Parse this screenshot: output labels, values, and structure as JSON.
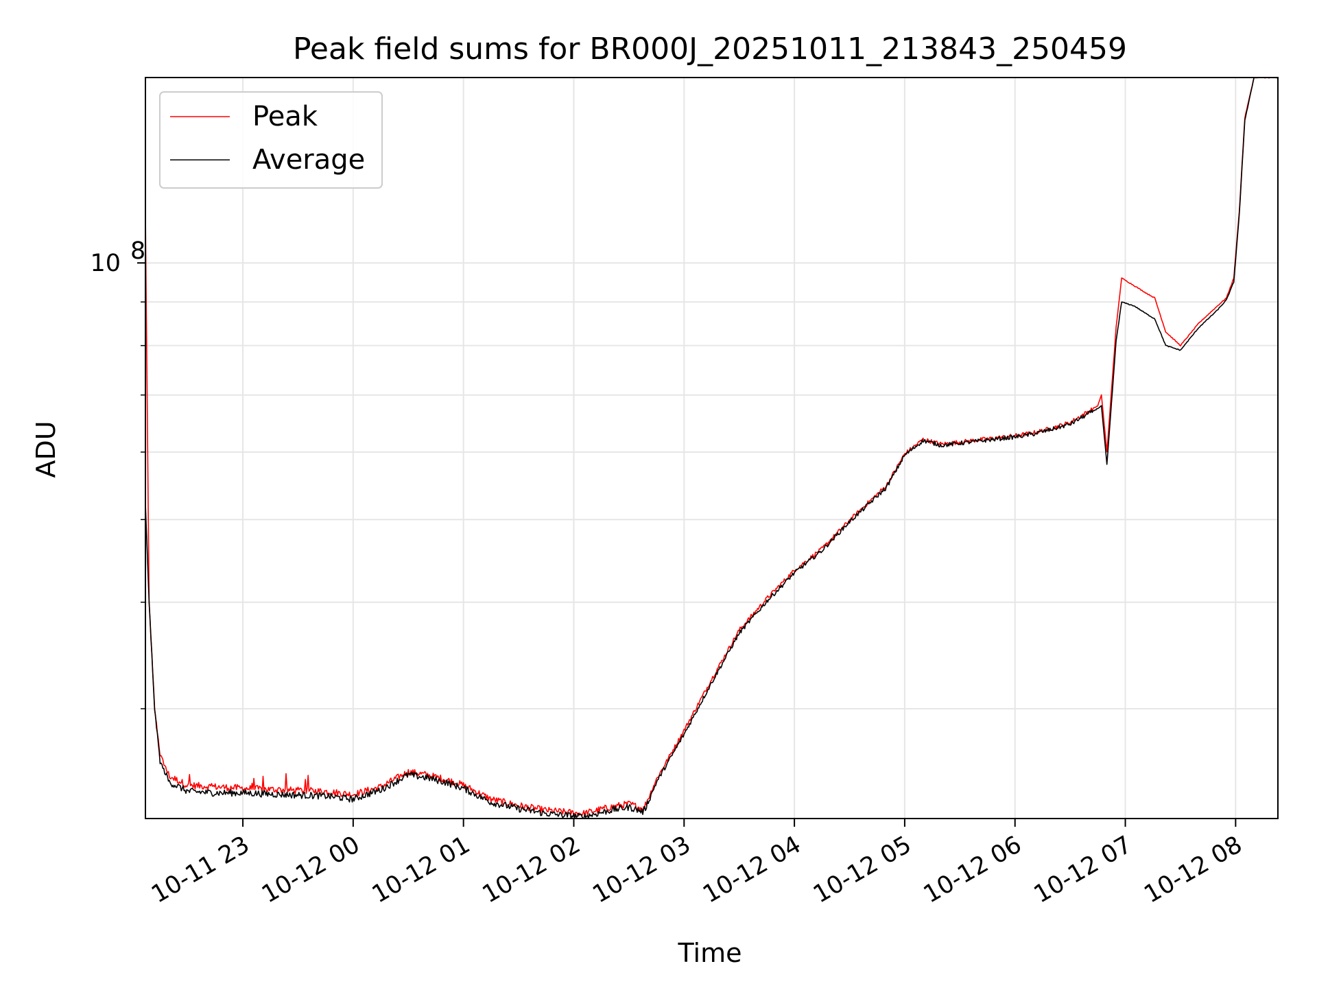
{
  "chart_data": {
    "type": "line",
    "title": "Peak field sums for BR000J_20251011_213843_250459",
    "xlabel": "Time",
    "ylabel": "ADU",
    "yscale": "log",
    "xlim": [
      "2025-10-11 22:07",
      "2025-10-12 08:23"
    ],
    "ylim": [
      22300000,
      165000000
    ],
    "grid": true,
    "legend_position": "top-left",
    "x_ticks": [
      "10-11 23",
      "10-12 00",
      "10-12 01",
      "10-12 02",
      "10-12 03",
      "10-12 04",
      "10-12 05",
      "10-12 06",
      "10-12 07",
      "10-12 08"
    ],
    "y_ticks": [
      {
        "label_base": "10",
        "label_exp": "8",
        "value": 100000000
      }
    ],
    "series": [
      {
        "name": "Peak",
        "color": "#ff0000",
        "x": [
          "2025-10-11 22:07",
          "2025-10-11 22:09",
          "2025-10-11 22:12",
          "2025-10-11 22:15",
          "2025-10-11 22:20",
          "2025-10-11 22:30",
          "2025-10-11 22:45",
          "2025-10-11 23:00",
          "2025-10-11 23:20",
          "2025-10-11 23:45",
          "2025-10-12 00:00",
          "2025-10-12 00:15",
          "2025-10-12 00:30",
          "2025-10-12 00:40",
          "2025-10-12 00:50",
          "2025-10-12 01:00",
          "2025-10-12 01:15",
          "2025-10-12 01:30",
          "2025-10-12 01:45",
          "2025-10-12 02:05",
          "2025-10-12 02:20",
          "2025-10-12 02:30",
          "2025-10-12 02:38",
          "2025-10-12 02:45",
          "2025-10-12 03:00",
          "2025-10-12 03:15",
          "2025-10-12 03:30",
          "2025-10-12 03:45",
          "2025-10-12 04:00",
          "2025-10-12 04:15",
          "2025-10-12 04:30",
          "2025-10-12 04:50",
          "2025-10-12 05:00",
          "2025-10-12 05:10",
          "2025-10-12 05:20",
          "2025-10-12 05:40",
          "2025-10-12 06:00",
          "2025-10-12 06:10",
          "2025-10-12 06:20",
          "2025-10-12 06:30",
          "2025-10-12 06:45",
          "2025-10-12 06:47",
          "2025-10-12 06:50",
          "2025-10-12 06:55",
          "2025-10-12 06:58",
          "2025-10-12 07:05",
          "2025-10-12 07:12",
          "2025-10-12 07:16",
          "2025-10-12 07:22",
          "2025-10-12 07:30",
          "2025-10-12 07:40",
          "2025-10-12 07:50",
          "2025-10-12 07:55",
          "2025-10-12 07:59",
          "2025-10-12 08:02",
          "2025-10-12 08:05",
          "2025-10-12 08:10",
          "2025-10-12 08:23"
        ],
        "y": [
          115000000,
          40000000,
          30000000,
          26500000,
          25000000,
          24400000,
          24300000,
          24200000,
          24100000,
          24000000,
          23800000,
          24300000,
          25300000,
          25100000,
          24800000,
          24400000,
          23500000,
          23100000,
          22800000,
          22600000,
          23000000,
          23200000,
          22900000,
          24800000,
          28300000,
          32500000,
          37100000,
          40400000,
          43600000,
          46200000,
          49900000,
          54800000,
          59700000,
          62100000,
          61300000,
          62000000,
          62700000,
          63200000,
          64000000,
          65000000,
          68000000,
          70000000,
          60000000,
          84000000,
          96000000,
          94000000,
          92000000,
          91000000,
          83000000,
          80000000,
          85000000,
          89000000,
          91000000,
          96000000,
          115000000,
          148000000,
          165000000,
          165000000
        ]
      },
      {
        "name": "Average",
        "color": "#000000",
        "x": [
          "2025-10-11 22:07",
          "2025-10-11 22:09",
          "2025-10-11 22:12",
          "2025-10-11 22:15",
          "2025-10-11 22:20",
          "2025-10-11 22:30",
          "2025-10-11 22:45",
          "2025-10-11 23:00",
          "2025-10-11 23:20",
          "2025-10-11 23:45",
          "2025-10-12 00:00",
          "2025-10-12 00:15",
          "2025-10-12 00:30",
          "2025-10-12 00:40",
          "2025-10-12 00:50",
          "2025-10-12 01:00",
          "2025-10-12 01:15",
          "2025-10-12 01:30",
          "2025-10-12 01:45",
          "2025-10-12 02:05",
          "2025-10-12 02:20",
          "2025-10-12 02:30",
          "2025-10-12 02:38",
          "2025-10-12 02:45",
          "2025-10-12 03:00",
          "2025-10-12 03:15",
          "2025-10-12 03:30",
          "2025-10-12 03:45",
          "2025-10-12 04:00",
          "2025-10-12 04:15",
          "2025-10-12 04:30",
          "2025-10-12 04:50",
          "2025-10-12 05:00",
          "2025-10-12 05:10",
          "2025-10-12 05:20",
          "2025-10-12 05:40",
          "2025-10-12 06:00",
          "2025-10-12 06:10",
          "2025-10-12 06:20",
          "2025-10-12 06:30",
          "2025-10-12 06:45",
          "2025-10-12 06:47",
          "2025-10-12 06:50",
          "2025-10-12 06:55",
          "2025-10-12 06:58",
          "2025-10-12 07:05",
          "2025-10-12 07:12",
          "2025-10-12 07:16",
          "2025-10-12 07:22",
          "2025-10-12 07:30",
          "2025-10-12 07:40",
          "2025-10-12 07:50",
          "2025-10-12 07:55",
          "2025-10-12 07:59",
          "2025-10-12 08:02",
          "2025-10-12 08:05",
          "2025-10-12 08:10",
          "2025-10-12 08:23"
        ],
        "y": [
          52000000,
          40000000,
          30000000,
          26000000,
          24600000,
          24000000,
          23900000,
          23900000,
          23800000,
          23700000,
          23500000,
          24100000,
          25100000,
          24900000,
          24600000,
          24200000,
          23300000,
          22900000,
          22600000,
          22400000,
          22800000,
          23000000,
          22700000,
          24600000,
          28000000,
          32200000,
          36800000,
          40100000,
          43300000,
          46000000,
          49700000,
          54500000,
          59500000,
          61900000,
          61100000,
          61800000,
          62500000,
          63000000,
          63800000,
          64700000,
          67500000,
          68000000,
          58000000,
          81000000,
          90000000,
          89000000,
          87000000,
          86000000,
          80000000,
          79000000,
          84000000,
          88000000,
          90500000,
          95000000,
          114000000,
          147000000,
          165000000,
          165000000
        ]
      }
    ]
  }
}
